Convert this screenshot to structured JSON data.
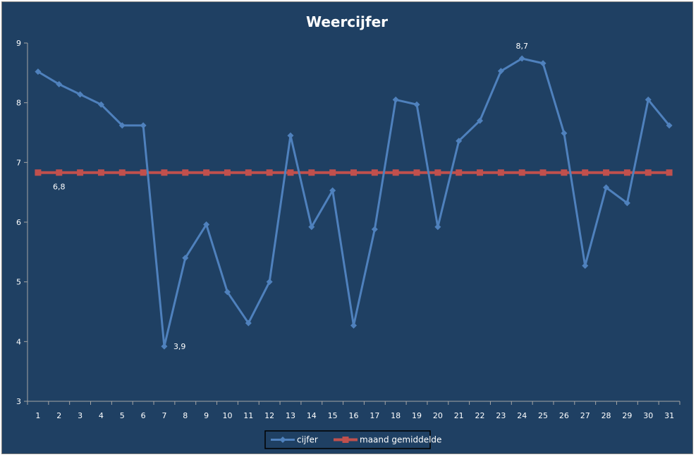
{
  "chart_data": {
    "type": "line",
    "title": "Weercijfer",
    "xlabel": "",
    "ylabel": "",
    "ylim": [
      3,
      9
    ],
    "yticks": [
      "3",
      "4",
      "5",
      "6",
      "7",
      "8",
      "9"
    ],
    "categories": [
      "1",
      "2",
      "3",
      "4",
      "5",
      "6",
      "7",
      "8",
      "9",
      "10",
      "11",
      "12",
      "13",
      "14",
      "15",
      "16",
      "17",
      "18",
      "19",
      "20",
      "21",
      "22",
      "23",
      "24",
      "25",
      "26",
      "27",
      "28",
      "29",
      "30",
      "31"
    ],
    "series": [
      {
        "name": "cijfer",
        "color": "#4f81bd",
        "marker": "diamond",
        "values": [
          8.52,
          8.31,
          8.14,
          7.97,
          7.62,
          7.62,
          3.92,
          5.4,
          5.96,
          4.83,
          4.31,
          5.0,
          7.45,
          5.92,
          6.53,
          4.27,
          5.88,
          8.05,
          7.97,
          5.92,
          7.36,
          7.7,
          8.53,
          8.74,
          8.66,
          7.49,
          5.27,
          6.58,
          6.32,
          8.05,
          7.62
        ]
      },
      {
        "name": "maand gemiddelde",
        "color": "#c0504d",
        "marker": "square",
        "values": [
          6.83,
          6.83,
          6.83,
          6.83,
          6.83,
          6.83,
          6.83,
          6.83,
          6.83,
          6.83,
          6.83,
          6.83,
          6.83,
          6.83,
          6.83,
          6.83,
          6.83,
          6.83,
          6.83,
          6.83,
          6.83,
          6.83,
          6.83,
          6.83,
          6.83,
          6.83,
          6.83,
          6.83,
          6.83,
          6.83,
          6.83
        ]
      }
    ],
    "data_labels": [
      {
        "series": 0,
        "index": 23,
        "text": "8,7",
        "position": "above"
      },
      {
        "series": 0,
        "index": 6,
        "text": "3,9",
        "position": "right"
      },
      {
        "series": 1,
        "index": 1,
        "text": "6,8",
        "position": "below"
      }
    ],
    "grid": false,
    "legend": "bottom",
    "background": "#1f4063",
    "axis_color": "#a6a6a6"
  }
}
